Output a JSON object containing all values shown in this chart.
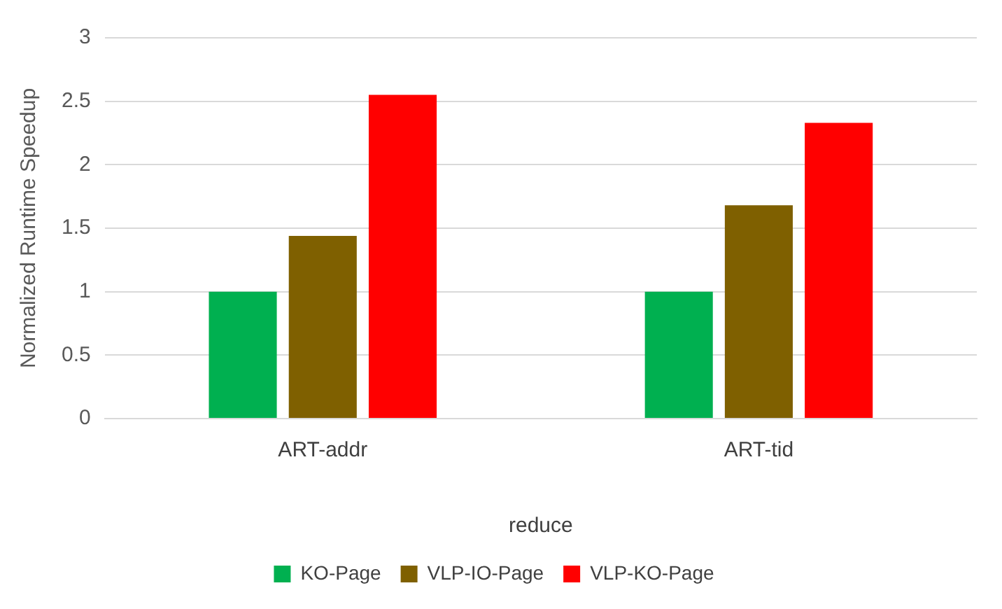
{
  "chart_data": {
    "type": "bar",
    "ylabel": "Normalized Runtime Speedup",
    "xlabel": "reduce",
    "categories": [
      "ART-addr",
      "ART-tid"
    ],
    "series": [
      {
        "name": "KO-Page",
        "color": "#00b050",
        "values": [
          1.0,
          1.0
        ]
      },
      {
        "name": "VLP-IO-Page",
        "color": "#7f6000",
        "values": [
          1.44,
          1.68
        ]
      },
      {
        "name": "VLP-KO-Page",
        "color": "#ff0000",
        "values": [
          2.55,
          2.33
        ]
      }
    ],
    "ylim": [
      0,
      3
    ],
    "yticks": [
      0,
      0.5,
      1,
      1.5,
      2,
      2.5,
      3
    ],
    "grid": "y",
    "legend": "bottom"
  }
}
